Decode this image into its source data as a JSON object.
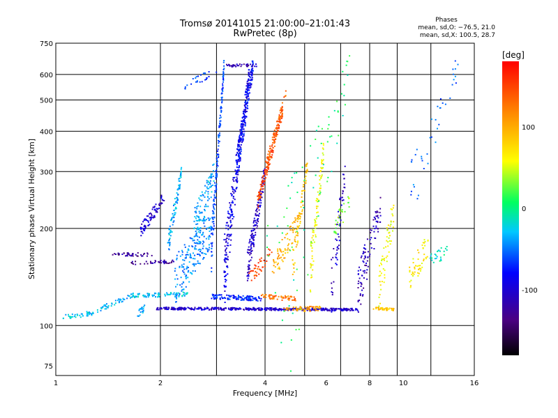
{
  "chart_data": {
    "type": "scatter",
    "title": "Tromsø 20141015 21:00:00–21:01:43",
    "subtitle": "RwPretec (8p)",
    "xlabel": "Frequency [MHz]",
    "ylabel": "Stationary phase Virtual Height [km]",
    "x_scale": "log",
    "y_scale": "log",
    "xlim": [
      1,
      16
    ],
    "ylim": [
      70,
      750
    ],
    "x_ticks": [
      1,
      2,
      4,
      6,
      8,
      10,
      16
    ],
    "y_ticks": [
      75,
      100,
      200,
      300,
      400,
      500,
      600,
      750
    ],
    "x_grid": [
      2,
      2.9,
      4,
      5.2,
      6.6,
      8,
      9.6,
      12
    ],
    "y_grid": [
      100,
      200,
      300,
      400,
      500,
      600
    ],
    "grid": true,
    "stats": {
      "heading": "Phases",
      "line1": "mean, sd,O: −76.5, 21.0",
      "line2": "mean, sd,X: 100.5, 28.7"
    },
    "colorbar": {
      "label": "[deg]",
      "ticks": [
        100,
        0,
        -100
      ],
      "range": [
        -180,
        180
      ]
    },
    "traces": [
      {
        "x": [
          1.05,
          1.28
        ],
        "y": [
          106,
          109
        ],
        "phase": -30,
        "n": 40,
        "jitter": 2
      },
      {
        "x": [
          1.28,
          1.65
        ],
        "y": [
          110,
          124
        ],
        "phase": -40,
        "n": 45,
        "jitter": 2
      },
      {
        "x": [
          1.65,
          2.4
        ],
        "y": [
          124,
          125
        ],
        "phase": -30,
        "n": 90,
        "jitter": 2
      },
      {
        "x": [
          1.72,
          1.8
        ],
        "y": [
          108,
          114
        ],
        "phase": -40,
        "n": 20,
        "jitter": 3
      },
      {
        "x": [
          1.95,
          7.4
        ],
        "y": [
          113,
          112
        ],
        "phase": -110,
        "n": 460,
        "jitter": 1
      },
      {
        "x": [
          2.8,
          3.9
        ],
        "y": [
          123,
          121
        ],
        "phase": -80,
        "n": 120,
        "jitter": 2
      },
      {
        "x": [
          3.9,
          4.9
        ],
        "y": [
          123,
          121
        ],
        "phase": 130,
        "n": 60,
        "jitter": 2
      },
      {
        "x": [
          4.5,
          5.8
        ],
        "y": [
          112,
          113
        ],
        "phase": 110,
        "n": 60,
        "jitter": 2
      },
      {
        "x": [
          8.2,
          9.4
        ],
        "y": [
          113,
          112
        ],
        "phase": 90,
        "n": 45,
        "jitter": 1
      },
      {
        "x": [
          1.45,
          1.9
        ],
        "y": [
          166,
          166
        ],
        "phase": -130,
        "n": 40,
        "jitter": 2
      },
      {
        "x": [
          1.65,
          2.2
        ],
        "y": [
          156,
          158
        ],
        "phase": -130,
        "n": 40,
        "jitter": 2
      },
      {
        "x": [
          1.75,
          2.05
        ],
        "y": [
          195,
          250
        ],
        "phase": -110,
        "n": 80,
        "jitter": 10
      },
      {
        "x": [
          2.1,
          2.3
        ],
        "y": [
          175,
          300
        ],
        "phase": -40,
        "n": 90,
        "jitter": 15
      },
      {
        "x": [
          2.2,
          2.8
        ],
        "y": [
          140,
          200
        ],
        "phase": -50,
        "n": 180,
        "jitter": 25
      },
      {
        "x": [
          2.5,
          2.85
        ],
        "y": [
          200,
          290
        ],
        "phase": -40,
        "n": 110,
        "jitter": 30
      },
      {
        "x": [
          2.8,
          3.05
        ],
        "y": [
          170,
          650
        ],
        "phase": -70,
        "n": 170,
        "jitter": 30
      },
      {
        "x": [
          3.05,
          3.6
        ],
        "y": [
          150,
          600
        ],
        "phase": -100,
        "n": 260,
        "jitter": 40
      },
      {
        "x": [
          3.3,
          3.7
        ],
        "y": [
          300,
          650
        ],
        "phase": -90,
        "n": 170,
        "jitter": 40
      },
      {
        "x": [
          3.55,
          4.0
        ],
        "y": [
          150,
          300
        ],
        "phase": -110,
        "n": 150,
        "jitter": 20
      },
      {
        "x": [
          3.1,
          3.8
        ],
        "y": [
          640,
          640
        ],
        "phase": -120,
        "n": 40,
        "jitter": 6
      },
      {
        "x": [
          2.35,
          2.9
        ],
        "y": [
          560,
          610
        ],
        "phase": -70,
        "n": 25,
        "jitter": 20
      },
      {
        "x": [
          3.8,
          4.5
        ],
        "y": [
          240,
          460
        ],
        "phase": 150,
        "n": 130,
        "jitter": 15
      },
      {
        "x": [
          4.0,
          4.6
        ],
        "y": [
          300,
          520
        ],
        "phase": 140,
        "n": 80,
        "jitter": 20
      },
      {
        "x": [
          3.6,
          4.2
        ],
        "y": [
          140,
          170
        ],
        "phase": 150,
        "n": 40,
        "jitter": 8
      },
      {
        "x": [
          4.2,
          5.0
        ],
        "y": [
          150,
          210
        ],
        "phase": 100,
        "n": 80,
        "jitter": 15
      },
      {
        "x": [
          4.8,
          5.3
        ],
        "y": [
          150,
          320
        ],
        "phase": 90,
        "n": 70,
        "jitter": 20
      },
      {
        "x": [
          5.4,
          5.9
        ],
        "y": [
          150,
          350
        ],
        "phase": 60,
        "n": 90,
        "jitter": 25
      },
      {
        "x": [
          6.2,
          6.8
        ],
        "y": [
          130,
          300
        ],
        "phase": -110,
        "n": 60,
        "jitter": 30
      },
      {
        "x": [
          6.3,
          7.0
        ],
        "y": [
          200,
          240
        ],
        "phase": 30,
        "n": 30,
        "jitter": 15
      },
      {
        "x": [
          7.4,
          8.6
        ],
        "y": [
          130,
          230
        ],
        "phase": -120,
        "n": 100,
        "jitter": 25
      },
      {
        "x": [
          8.5,
          9.4
        ],
        "y": [
          130,
          230
        ],
        "phase": 60,
        "n": 60,
        "jitter": 25
      },
      {
        "x": [
          10.4,
          11.8
        ],
        "y": [
          140,
          180
        ],
        "phase": 70,
        "n": 50,
        "jitter": 15
      },
      {
        "x": [
          11.8,
          13.5
        ],
        "y": [
          160,
          170
        ],
        "phase": -20,
        "n": 25,
        "jitter": 8
      },
      {
        "x": [
          10.5,
          14.5
        ],
        "y": [
          270,
          650
        ],
        "phase": -60,
        "n": 40,
        "jitter": 60
      },
      {
        "x": [
          4.0,
          7.0
        ],
        "y": [
          100,
          600
        ],
        "phase": 0,
        "n": 90,
        "jitter": 120
      }
    ]
  }
}
